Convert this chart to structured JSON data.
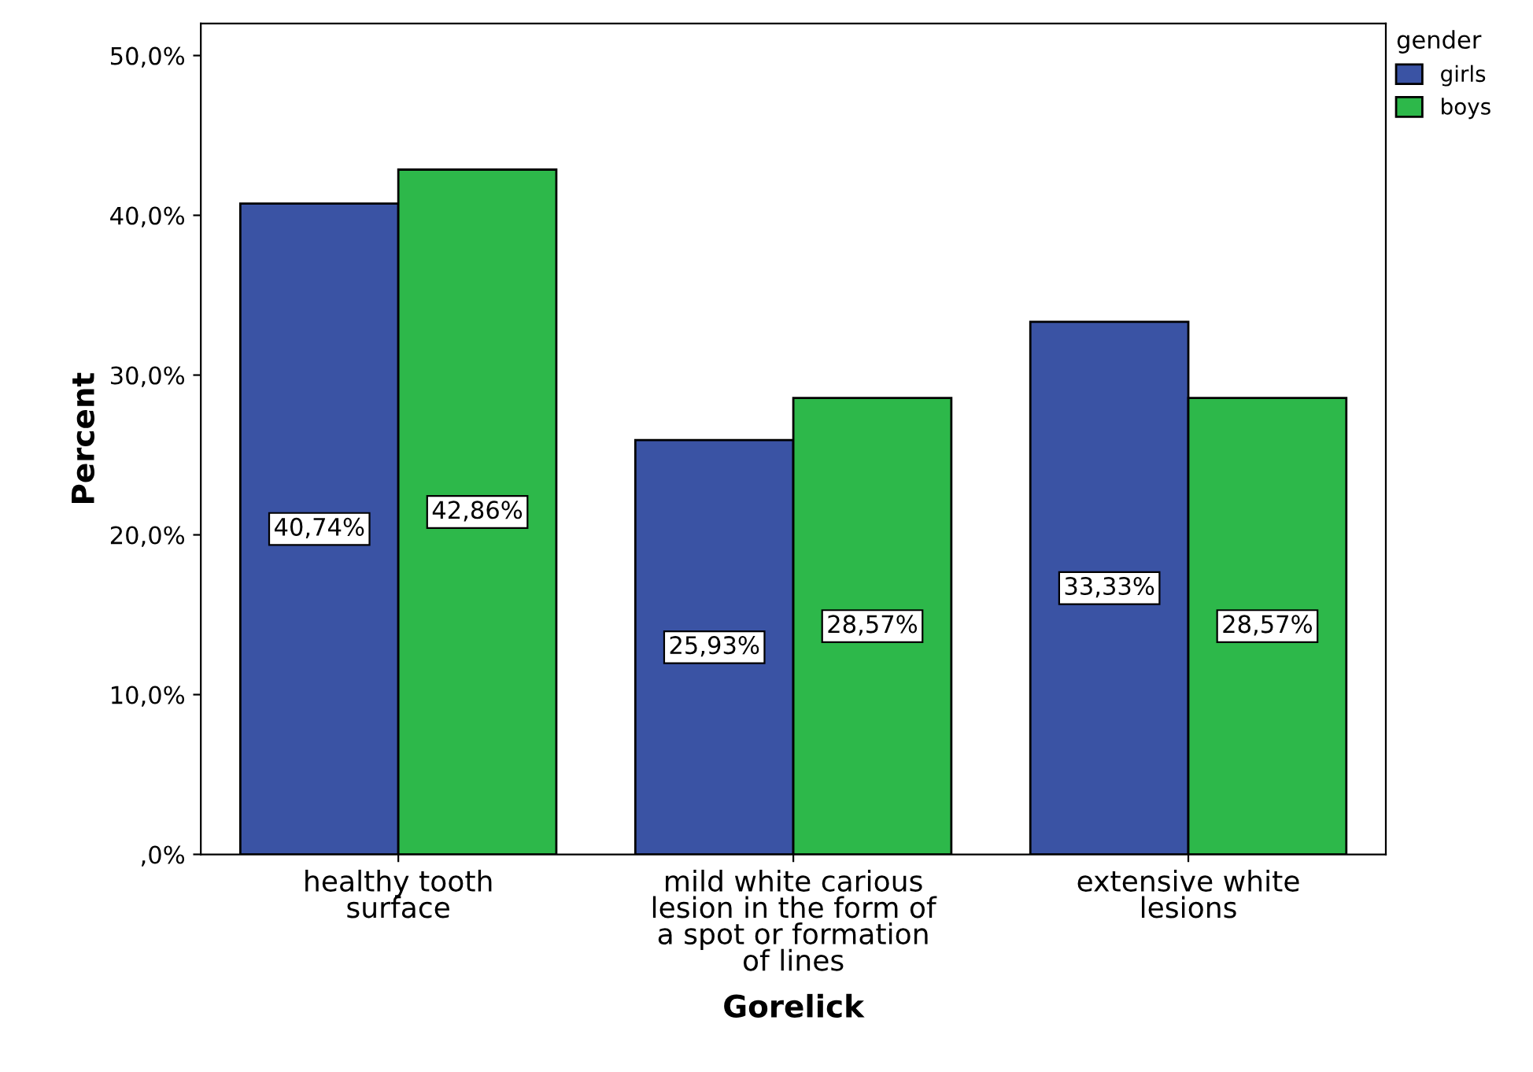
{
  "chart_data": {
    "type": "bar",
    "xlabel": "Gorelick",
    "ylabel": "Percent",
    "legend_title": "gender",
    "legend": "top right",
    "categories": [
      "healthy tooth\nsurface",
      "mild white carious\nlesion in the form of\na spot or formation\nof lines",
      "extensive white\nlesions"
    ],
    "series": [
      {
        "name": "girls",
        "color": "#3a53a4",
        "values": [
          40.74,
          25.93,
          33.33
        ],
        "value_labels": [
          "40,74%",
          "25,93%",
          "33,33%"
        ]
      },
      {
        "name": "boys",
        "color": "#2db84a",
        "values": [
          42.86,
          28.57,
          28.57
        ],
        "value_labels": [
          "42,86%",
          "28,57%",
          "28,57%"
        ]
      }
    ],
    "ylim": [
      0,
      52
    ],
    "yticks": [
      {
        "value": 0,
        "label": ",0%"
      },
      {
        "value": 10,
        "label": "10,0%"
      },
      {
        "value": 20,
        "label": "20,0%"
      },
      {
        "value": 30,
        "label": "30,0%"
      },
      {
        "value": 40,
        "label": "40,0%"
      },
      {
        "value": 50,
        "label": "50,0%"
      }
    ],
    "grid": false
  }
}
